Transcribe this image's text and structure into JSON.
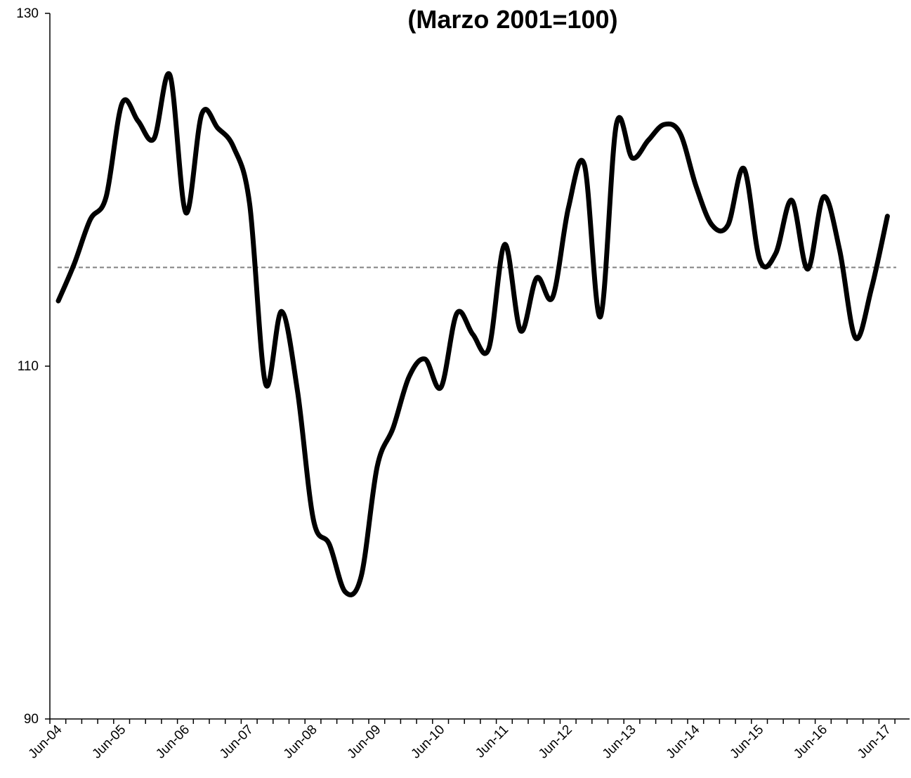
{
  "chart_data": {
    "type": "line",
    "title": "(Marzo 2001=100)",
    "categories": [
      "Jun-04",
      null,
      null,
      null,
      "Jun-05",
      null,
      null,
      null,
      "Jun-06",
      null,
      null,
      null,
      "Jun-07",
      null,
      null,
      null,
      "Jun-08",
      null,
      null,
      null,
      "Jun-09",
      null,
      null,
      null,
      "Jun-10",
      null,
      null,
      null,
      "Jun-11",
      null,
      null,
      null,
      "Jun-12",
      null,
      null,
      null,
      "Jun-13",
      null,
      null,
      null,
      "Jun-14",
      null,
      null,
      null,
      "Jun-15",
      null,
      null,
      null,
      "Jun-16",
      null,
      null,
      null,
      "Jun-17"
    ],
    "values": [
      113.7,
      115.8,
      118.3,
      119.6,
      124.9,
      123.9,
      122.9,
      126.5,
      118.7,
      124.3,
      123.5,
      122.4,
      119.2,
      109.0,
      113.1,
      108.6,
      101.3,
      99.9,
      97.2,
      98.1,
      104.3,
      106.5,
      109.4,
      110.4,
      108.8,
      113.0,
      111.8,
      111.0,
      116.9,
      112.0,
      115.0,
      113.9,
      119.0,
      121.4,
      112.8,
      123.7,
      121.8,
      122.8,
      123.7,
      123.2,
      120.2,
      118.0,
      118.0,
      121.2,
      116.0,
      116.4,
      119.4,
      115.5,
      119.6,
      116.6,
      111.6,
      114.4,
      118.5
    ],
    "color": "#000000",
    "reference_line": 115.6,
    "ylim": [
      90,
      130
    ],
    "yticks": [
      90,
      110,
      130
    ]
  }
}
